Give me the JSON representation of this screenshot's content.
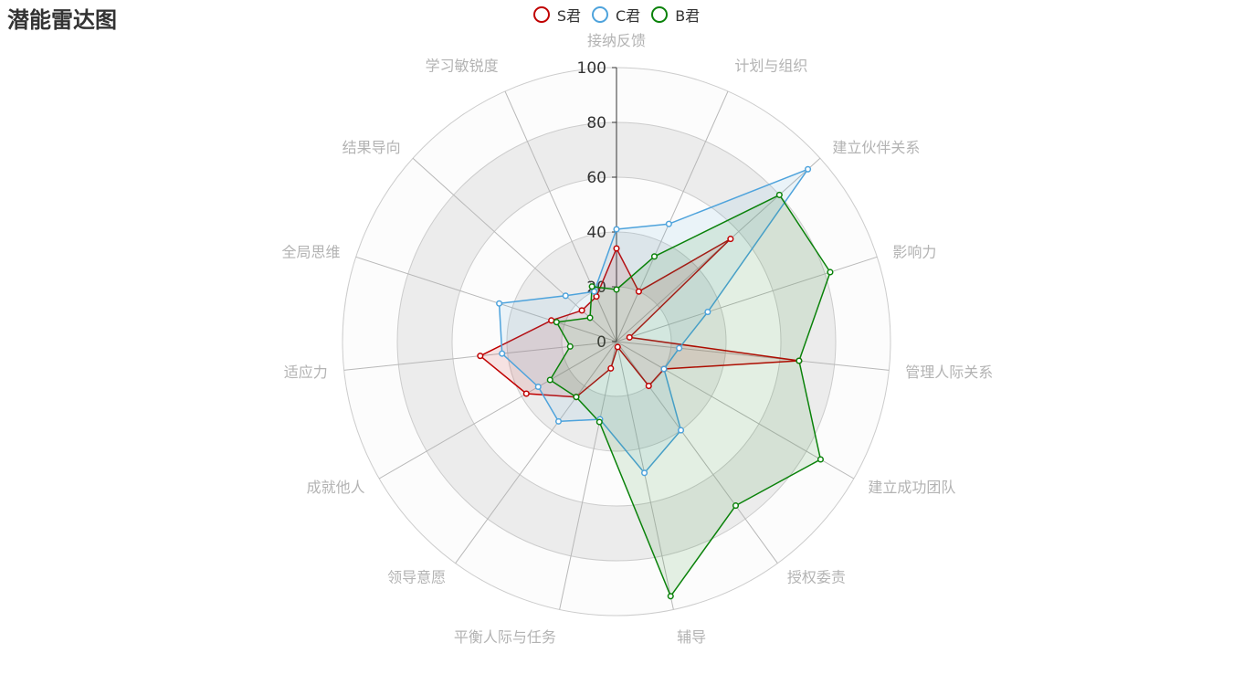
{
  "title": "潜能雷达图",
  "colors": {
    "S": "#c00000",
    "C": "#4ea3dc",
    "B": "#0a820a"
  },
  "legend": [
    {
      "name": "S君",
      "color": "#c00000"
    },
    {
      "name": "C君",
      "color": "#4ea3dc"
    },
    {
      "name": "B君",
      "color": "#0a820a"
    }
  ],
  "chart_data": {
    "type": "radar",
    "title": "潜能雷达图",
    "indicators": [
      "接纳反馈",
      "计划与组织",
      "建立伙伴关系",
      "影响力",
      "管理人际关系",
      "建立成功团队",
      "授权委责",
      "辅导",
      "平衡人际与任务",
      "领导意愿",
      "成就他人",
      "适应力",
      "全局思维",
      "结果导向",
      "学习敏锐度"
    ],
    "max": 100,
    "ticks": [
      0,
      20,
      40,
      60,
      80,
      100
    ],
    "series": [
      {
        "name": "S君",
        "values": [
          34,
          20,
          56,
          5,
          67,
          20,
          20,
          2,
          10,
          25,
          38,
          50,
          25,
          17,
          18
        ]
      },
      {
        "name": "C君",
        "values": [
          41,
          47,
          94,
          35,
          23,
          20,
          40,
          49,
          29,
          36,
          33,
          42,
          45,
          25,
          20
        ]
      },
      {
        "name": "B君",
        "values": [
          19,
          34,
          80,
          82,
          67,
          86,
          74,
          95,
          30,
          25,
          28,
          17,
          23,
          13,
          22
        ]
      }
    ]
  }
}
